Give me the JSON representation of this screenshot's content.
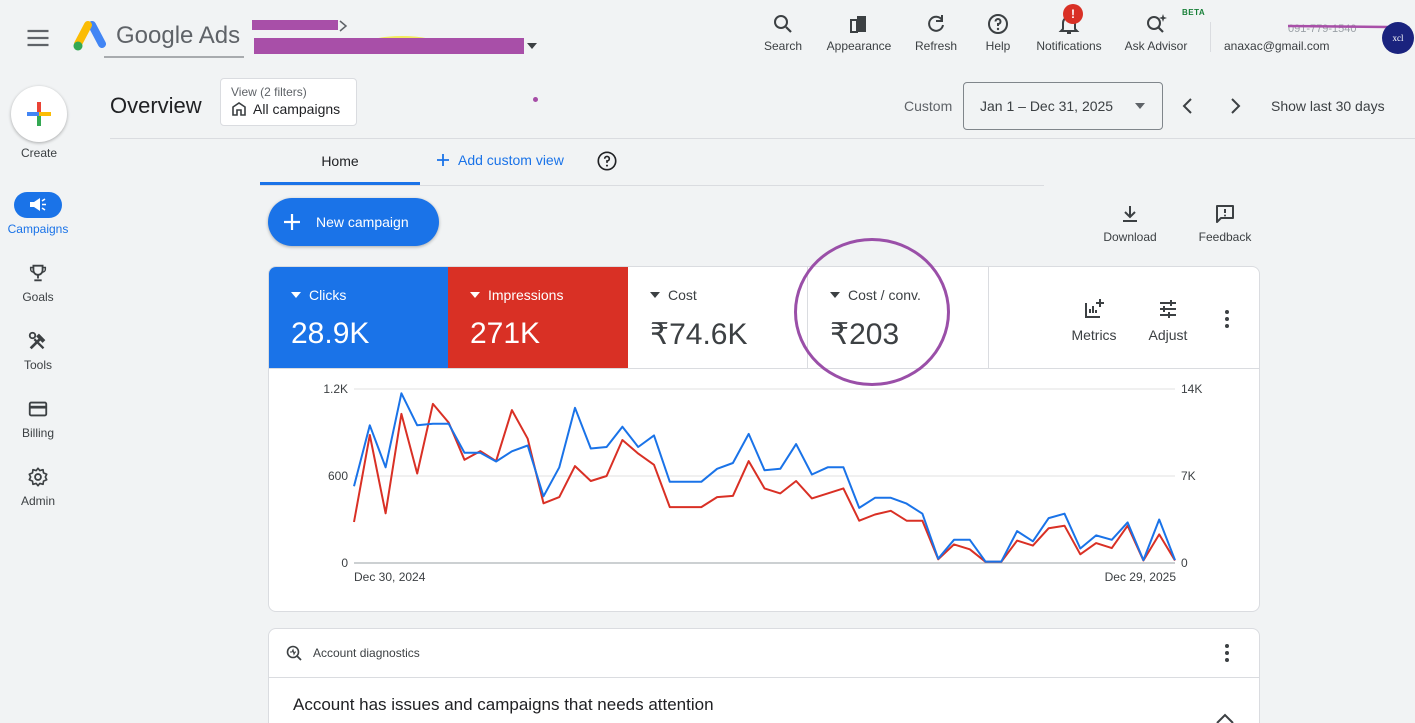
{
  "header": {
    "brand": "Google Ads",
    "tools": [
      {
        "label": "Search",
        "icon": "search-icon"
      },
      {
        "label": "Appearance",
        "icon": "appearance-icon"
      },
      {
        "label": "Refresh",
        "icon": "refresh-icon"
      },
      {
        "label": "Help",
        "icon": "help-icon"
      },
      {
        "label": "Notifications",
        "icon": "bell-icon",
        "badge": "!"
      },
      {
        "label": "Ask Advisor",
        "icon": "ask-advisor-icon",
        "badge": "BETA"
      }
    ],
    "account_email": "anaxac@gmail.com",
    "avatar_text": "xcl"
  },
  "nav": {
    "create_label": "Create",
    "items": [
      {
        "label": "Campaigns",
        "icon": "campaigns-icon",
        "active": true
      },
      {
        "label": "Goals",
        "icon": "trophy-icon"
      },
      {
        "label": "Tools",
        "icon": "tools-icon"
      },
      {
        "label": "Billing",
        "icon": "credit-card-icon"
      },
      {
        "label": "Admin",
        "icon": "gear-icon"
      }
    ]
  },
  "toolbar": {
    "page_title": "Overview",
    "view_sub": "View (2 filters)",
    "view_main": "All campaigns",
    "custom_label": "Custom",
    "date_range": "Jan 1 – Dec 31, 2025",
    "show_last": "Show last 30 days"
  },
  "tabs": {
    "home": "Home",
    "add_custom": "Add custom view"
  },
  "actions": {
    "new_campaign": "New campaign",
    "download": "Download",
    "feedback": "Feedback",
    "metrics": "Metrics",
    "adjust": "Adjust"
  },
  "metrics": {
    "clicks": {
      "label": "Clicks",
      "value": "28.9K",
      "color": "#1a73e8"
    },
    "impressions": {
      "label": "Impressions",
      "value": "271K",
      "color": "#d93025"
    },
    "cost": {
      "label": "Cost",
      "value": "₹74.6K"
    },
    "cost_conv": {
      "label": "Cost / conv.",
      "value": "₹203"
    }
  },
  "chart_data": {
    "type": "line",
    "x_start_label": "Dec 30, 2024",
    "x_end_label": "Dec 29, 2025",
    "left_axis_ticks": [
      "0",
      "600",
      "1.2K"
    ],
    "right_axis_ticks": [
      "0",
      "7K",
      "14K"
    ],
    "ylim_left": [
      0,
      1200
    ],
    "ylim_right": [
      0,
      14000
    ],
    "grid": true,
    "series": [
      {
        "name": "Clicks",
        "axis": "left",
        "color": "#1a73e8",
        "values": [
          530,
          950,
          660,
          1170,
          950,
          960,
          960,
          760,
          760,
          700,
          770,
          810,
          460,
          660,
          1070,
          790,
          800,
          940,
          800,
          880,
          560,
          560,
          560,
          650,
          690,
          890,
          640,
          650,
          820,
          610,
          660,
          660,
          380,
          450,
          450,
          410,
          340,
          30,
          160,
          160,
          10,
          10,
          220,
          150,
          310,
          340,
          100,
          190,
          160,
          280,
          20,
          300,
          20
        ]
      },
      {
        "name": "Impressions",
        "axis": "right",
        "color": "#d93025",
        "values": [
          3300,
          10300,
          4000,
          12000,
          7200,
          12800,
          11300,
          8300,
          9000,
          8200,
          12300,
          10000,
          4800,
          5300,
          7800,
          6600,
          7000,
          9900,
          8800,
          7900,
          4500,
          4500,
          4500,
          5300,
          5400,
          8200,
          6000,
          5600,
          6600,
          5200,
          5600,
          6000,
          3400,
          3900,
          4200,
          3400,
          3400,
          300,
          1500,
          1100,
          100,
          100,
          1800,
          1400,
          2800,
          3000,
          700,
          1600,
          1200,
          3000,
          200,
          2300,
          200
        ]
      }
    ]
  },
  "diagnostics": {
    "title": "Account diagnostics",
    "message": "Account has issues and campaigns that needs attention"
  }
}
